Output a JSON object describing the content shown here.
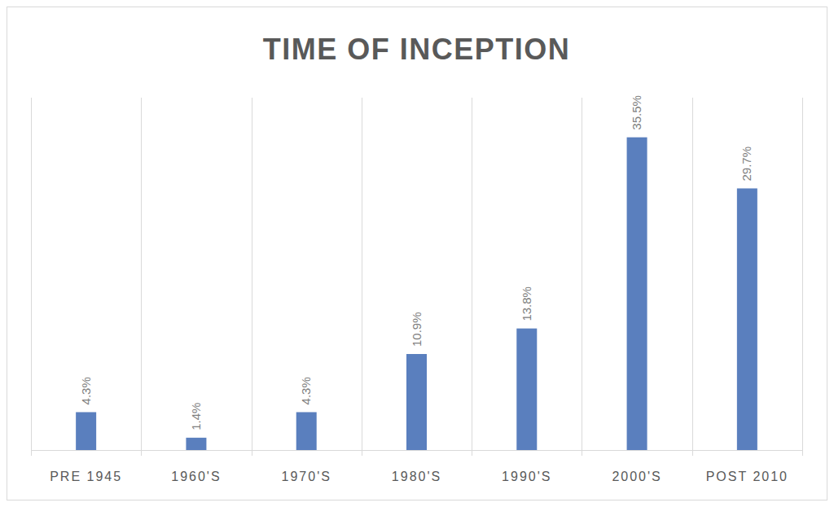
{
  "chart_data": {
    "type": "bar",
    "title": "TIME OF INCEPTION",
    "categories": [
      "PRE 1945",
      "1960'S",
      "1970'S",
      "1980'S",
      "1990'S",
      "2000'S",
      "POST 2010"
    ],
    "values": [
      4.3,
      1.4,
      4.3,
      10.9,
      13.8,
      35.5,
      29.7
    ],
    "value_labels": [
      "4.3%",
      "1.4%",
      "4.3%",
      "10.9%",
      "13.8%",
      "35.5%",
      "29.7%"
    ],
    "color": "#5a7fbe",
    "ylim": [
      0,
      40
    ],
    "grid": true,
    "data_labels": true,
    "tick_labels": "x"
  }
}
